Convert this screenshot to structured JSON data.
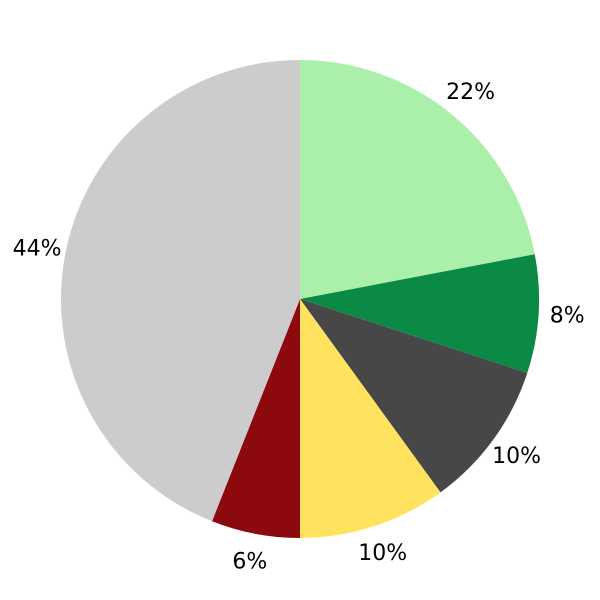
{
  "chart_data": {
    "type": "pie",
    "title": "",
    "legend": false,
    "labels_position": "outside",
    "background": "#ffffff",
    "label_color": "#000000",
    "start_angle": 90,
    "direction": "clockwise",
    "slices": [
      {
        "label": "22%",
        "value": 22,
        "color": "#aaf0aa"
      },
      {
        "label": "8%",
        "value": 8,
        "color": "#0a8a45"
      },
      {
        "label": "10%",
        "value": 10,
        "color": "#474747"
      },
      {
        "label": "10%",
        "value": 10,
        "color": "#ffe35e"
      },
      {
        "label": "6%",
        "value": 6,
        "color": "#8c0a0e"
      },
      {
        "label": "44%",
        "value": 44,
        "color": "#cccccc"
      }
    ]
  }
}
